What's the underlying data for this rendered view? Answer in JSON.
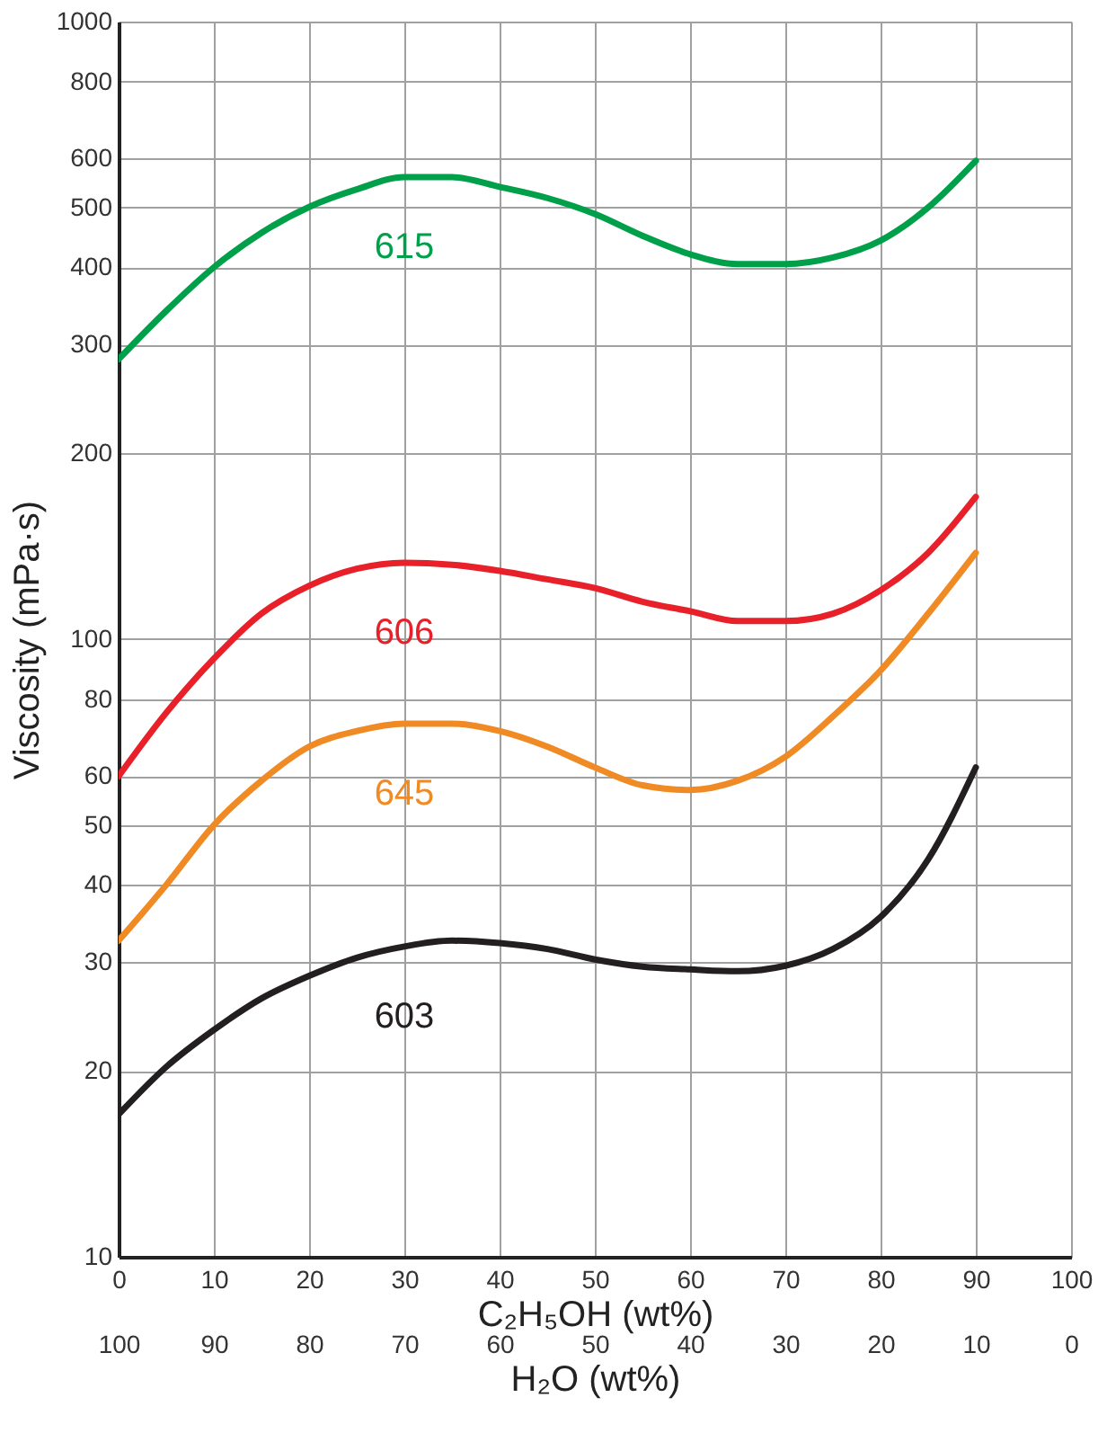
{
  "chart_data": {
    "type": "line",
    "xlabel": "C₂H₅OH (wt%)",
    "ylabel": "Viscosity (mPa·s)",
    "x2label": "H₂O (wt%)",
    "x": [
      0,
      5,
      10,
      15,
      20,
      25,
      30,
      35,
      40,
      45,
      50,
      55,
      60,
      65,
      70,
      75,
      80,
      85,
      90
    ],
    "series": [
      {
        "name": "615",
        "color": "#00a04a",
        "values": [
          284,
          340,
          400,
          455,
          501,
          535,
          560,
          560,
          540,
          518,
          488,
          450,
          420,
          405,
          405,
          415,
          442,
          500,
          595
        ]
      },
      {
        "name": "606",
        "color": "#e8202a",
        "values": [
          60,
          76,
          93,
          110,
          122,
          130,
          133,
          132,
          129,
          125,
          121,
          115,
          111,
          107,
          107,
          110,
          120,
          138,
          170
        ]
      },
      {
        "name": "645",
        "color": "#f08a24",
        "values": [
          32.5,
          40,
          50,
          59,
          67,
          71,
          73,
          73,
          71,
          67,
          62,
          58,
          57,
          59,
          64.5,
          75,
          89,
          110,
          138
        ]
      },
      {
        "name": "603",
        "color": "#231f20",
        "values": [
          17,
          20.3,
          23.3,
          26.2,
          28.5,
          30.5,
          31.8,
          32.5,
          32.2,
          31.5,
          30.3,
          29.5,
          29.2,
          29,
          29.6,
          31.5,
          35.5,
          44,
          62
        ]
      }
    ],
    "xlim": [
      0,
      100
    ],
    "xticks": [
      0,
      10,
      20,
      30,
      40,
      50,
      60,
      70,
      80,
      90,
      100
    ],
    "x2lim": [
      100,
      0
    ],
    "x2ticks": [
      100,
      90,
      80,
      70,
      60,
      50,
      40,
      30,
      20,
      10,
      0
    ],
    "ylim": [
      10,
      1000
    ],
    "yticks": [
      10,
      20,
      30,
      40,
      50,
      60,
      80,
      100,
      200,
      300,
      400,
      500,
      600,
      800,
      1000
    ],
    "log": "y",
    "grid": true
  }
}
